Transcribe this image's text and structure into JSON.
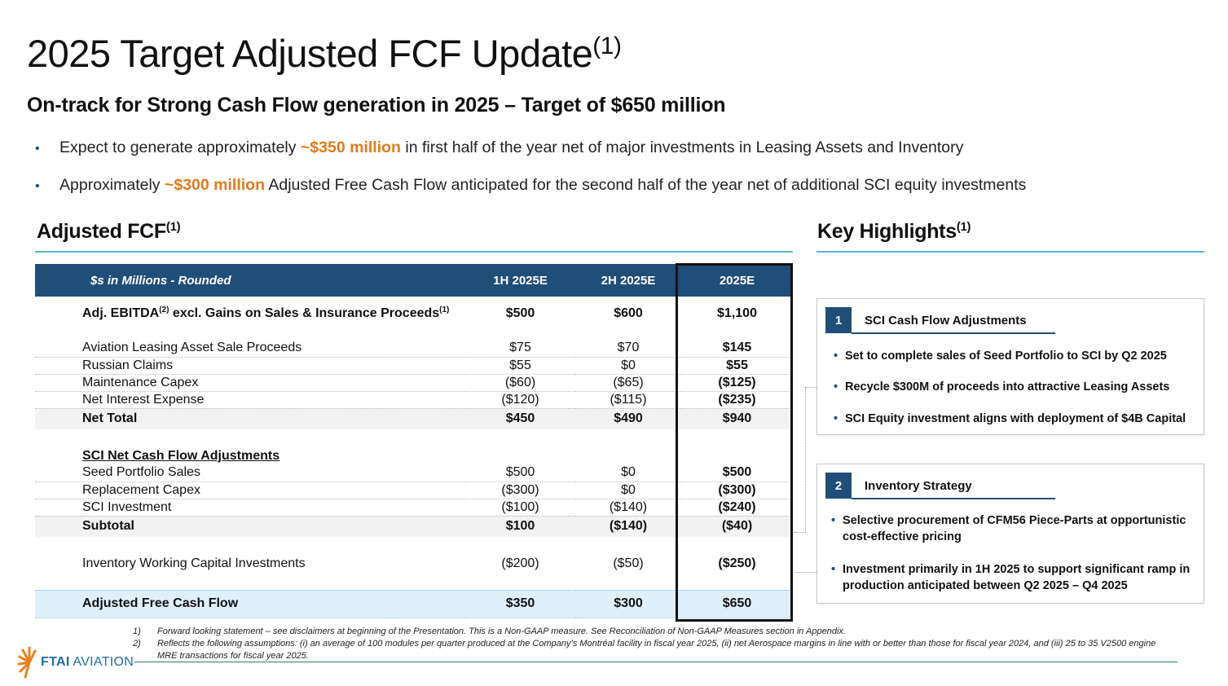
{
  "title": {
    "text": "2025 Target Adjusted FCF Update",
    "sup": "(1)"
  },
  "subtitle": "On-track for Strong Cash Flow generation in 2025 – Target of $650 million",
  "bullets": [
    {
      "pre": "Expect to generate approximately ",
      "hl": "~$350 million",
      "post": " in first half of the year net of major investments in Leasing Assets and Inventory"
    },
    {
      "pre": "Approximately ",
      "hl": "~$300 million",
      "post": " Adjusted Free Cash Flow anticipated for the second half of the year net of additional SCI equity investments"
    }
  ],
  "fcf_section": {
    "title": "Adjusted FCF",
    "sup": "(1)"
  },
  "highlights_section": {
    "title": "Key Highlights",
    "sup": "(1)"
  },
  "table": {
    "header": [
      "$s in Millions - Rounded",
      "1H 2025E",
      "2H 2025E",
      "2025E"
    ],
    "ebitda": {
      "label": "Adj. EBITDA",
      "sup": "(2)",
      "label2": " excl. Gains on Sales & Insurance Proceeds",
      "sup2": "(1)",
      "v1": "$500",
      "v2": "$600",
      "v3": "$1,100"
    },
    "group1": [
      {
        "label": "Aviation Leasing Asset Sale Proceeds",
        "v1": "$75",
        "v2": "$70",
        "v3": "$145"
      },
      {
        "label": "Russian Claims",
        "v1": "$55",
        "v2": "$0",
        "v3": "$55"
      },
      {
        "label": "Maintenance Capex",
        "v1": "($60)",
        "v2": "($65)",
        "v3": "($125)"
      },
      {
        "label": "Net Interest Expense",
        "v1": "($120)",
        "v2": "($115)",
        "v3": "($235)"
      }
    ],
    "net_total": {
      "label": "Net Total",
      "v1": "$450",
      "v2": "$490",
      "v3": "$940"
    },
    "sci_heading": "SCI Net Cash Flow Adjustments",
    "group2": [
      {
        "label": "Seed Portfolio Sales",
        "v1": "$500",
        "v2": "$0",
        "v3": "$500"
      },
      {
        "label": "Replacement Capex",
        "v1": "($300)",
        "v2": "$0",
        "v3": "($300)"
      },
      {
        "label": "SCI Investment",
        "v1": "($100)",
        "v2": "($140)",
        "v3": "($240)"
      }
    ],
    "subtotal": {
      "label": "Subtotal",
      "v1": "$100",
      "v2": "($140)",
      "v3": "($40)"
    },
    "inventory": {
      "label": "Inventory Working Capital Investments",
      "v1": "($200)",
      "v2": "($50)",
      "v3": "($250)"
    },
    "final": {
      "label": "Adjusted Free Cash Flow",
      "v1": "$350",
      "v2": "$300",
      "v3": "$650"
    }
  },
  "highlights": [
    {
      "num": "1",
      "title": "SCI Cash Flow Adjustments",
      "items": [
        "Set to complete sales of Seed Portfolio to SCI by Q2 2025",
        "Recycle $300M of proceeds into attractive Leasing Assets",
        "SCI Equity investment aligns with deployment of $4B Capital"
      ]
    },
    {
      "num": "2",
      "title": "Inventory Strategy",
      "items": [
        "Selective procurement of CFM56 Piece-Parts at opportunistic cost-effective pricing",
        "Investment primarily in 1H 2025 to support significant ramp in production anticipated between Q2 2025 – Q4 2025"
      ]
    }
  ],
  "footnotes": [
    {
      "num": "1)",
      "text": "Forward looking statement – see disclaimers at beginning of the Presentation. This is a Non-GAAP measure. See Reconciliation of Non-GAAP Measures section in Appendix."
    },
    {
      "num": "2)",
      "text": "Reflects the following assumptions: (i) an average of 100 modules per quarter produced at the Company’s Montréal facility in fiscal year 2025, (ii) net Aerospace margins in line with or better than those for fiscal year 2024, and (iii) 25 to 35 V2500 engine MRE transactions for fiscal year 2025."
    }
  ],
  "logo": {
    "brand": "FTAI",
    "suffix": " AVIATION"
  },
  "colors": {
    "navy": "#1f4e79",
    "accent_orange": "#e07b1f",
    "light_blue": "#dff0fa",
    "rule_blue": "#5fb3d8",
    "logo_orange": "#e8821e"
  }
}
